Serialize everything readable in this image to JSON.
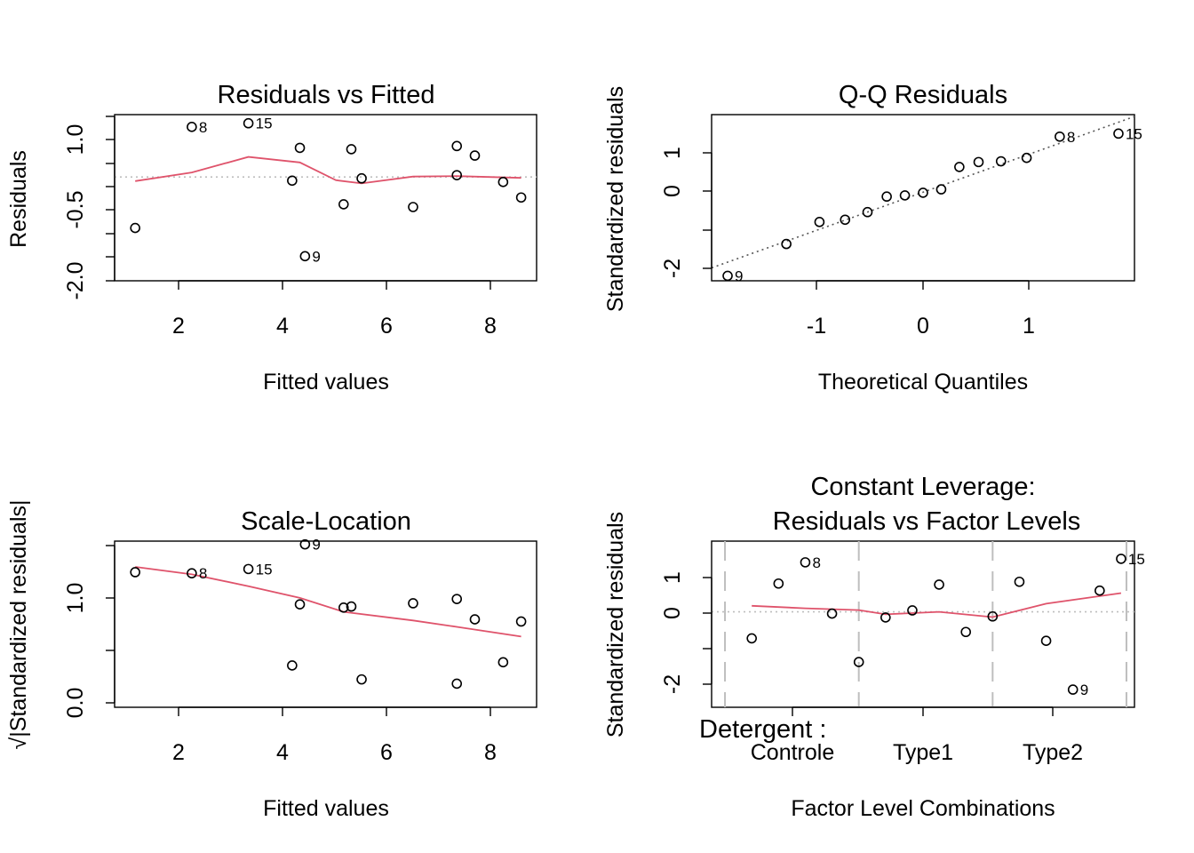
{
  "colors": {
    "background": "#ffffff",
    "points": "#000000",
    "smooth_line": "#DF536B",
    "reference_line": "#BEBEBE",
    "qq_line": "#555555"
  },
  "chart_data": [
    {
      "type": "scatter",
      "title": "Residuals vs Fitted",
      "xlabel": "Fitted values",
      "ylabel": "Residuals",
      "xlim": [
        0.7,
        8.9
      ],
      "ylim": [
        -2.28,
        1.37
      ],
      "x_ticks": [
        "2",
        "4",
        "6",
        "8"
      ],
      "y_ticks": [
        "-2.0",
        "-0.5",
        "1.0"
      ],
      "grid": false,
      "reference_line": {
        "y": 0,
        "style": "dotted"
      },
      "points": [
        {
          "x": 1.1,
          "y": -1.12,
          "label": ""
        },
        {
          "x": 2.2,
          "y": 1.1,
          "label": "8"
        },
        {
          "x": 3.3,
          "y": 1.18,
          "label": "15"
        },
        {
          "x": 4.15,
          "y": -0.08,
          "label": ""
        },
        {
          "x": 4.3,
          "y": 0.64,
          "label": ""
        },
        {
          "x": 4.4,
          "y": -1.74,
          "label": "9"
        },
        {
          "x": 5.15,
          "y": -0.6,
          "label": ""
        },
        {
          "x": 5.3,
          "y": 0.61,
          "label": ""
        },
        {
          "x": 5.5,
          "y": -0.03,
          "label": ""
        },
        {
          "x": 6.5,
          "y": -0.66,
          "label": ""
        },
        {
          "x": 7.35,
          "y": 0.68,
          "label": ""
        },
        {
          "x": 7.35,
          "y": 0.04,
          "label": ""
        },
        {
          "x": 7.7,
          "y": 0.47,
          "label": ""
        },
        {
          "x": 8.25,
          "y": -0.11,
          "label": ""
        },
        {
          "x": 8.6,
          "y": -0.45,
          "label": ""
        }
      ],
      "smooth": [
        [
          1.1,
          -0.09
        ],
        [
          2.2,
          0.1
        ],
        [
          3.3,
          0.44
        ],
        [
          4.3,
          0.32
        ],
        [
          5.0,
          -0.07
        ],
        [
          5.5,
          -0.14
        ],
        [
          6.5,
          0.01
        ],
        [
          7.35,
          0.02
        ],
        [
          8.6,
          -0.02
        ]
      ]
    },
    {
      "type": "scatter",
      "title": "Q-Q Residuals",
      "xlabel": "Theoretical Quantiles",
      "ylabel": "Standardized residuals",
      "xlim": [
        -1.98,
        1.98
      ],
      "ylim": [
        -2.38,
        2.0
      ],
      "x_ticks": [
        "-1",
        "0",
        "1"
      ],
      "y_ticks": [
        "-2",
        "0",
        "1"
      ],
      "grid": false,
      "reference_line": {
        "through": [
          [
            -1.98,
            -2.04
          ],
          [
            1.98,
            1.95
          ]
        ],
        "style": "dotted"
      },
      "points": [
        {
          "x": -1.83,
          "y": -2.25,
          "label": "9"
        },
        {
          "x": -1.28,
          "y": -1.41,
          "label": ""
        },
        {
          "x": -0.97,
          "y": -0.83,
          "label": ""
        },
        {
          "x": -0.73,
          "y": -0.77,
          "label": ""
        },
        {
          "x": -0.52,
          "y": -0.57,
          "label": ""
        },
        {
          "x": -0.34,
          "y": -0.16,
          "label": ""
        },
        {
          "x": -0.17,
          "y": -0.13,
          "label": ""
        },
        {
          "x": 0.0,
          "y": -0.06,
          "label": ""
        },
        {
          "x": 0.17,
          "y": 0.03,
          "label": ""
        },
        {
          "x": 0.34,
          "y": 0.62,
          "label": ""
        },
        {
          "x": 0.52,
          "y": 0.75,
          "label": ""
        },
        {
          "x": 0.73,
          "y": 0.77,
          "label": ""
        },
        {
          "x": 0.97,
          "y": 0.86,
          "label": ""
        },
        {
          "x": 1.28,
          "y": 1.42,
          "label": "8"
        },
        {
          "x": 1.83,
          "y": 1.5,
          "label": "15"
        }
      ]
    },
    {
      "type": "scatter",
      "title": "Scale-Location",
      "xlabel": "Fitted values",
      "ylabel": "√|Standardized residuals|",
      "xlim": [
        0.7,
        8.9
      ],
      "ylim": [
        -0.05,
        1.5
      ],
      "x_ticks": [
        "2",
        "4",
        "6",
        "8"
      ],
      "y_ticks": [
        "0.0",
        "1.0"
      ],
      "grid": false,
      "points": [
        {
          "x": 1.1,
          "y": 1.21,
          "label": ""
        },
        {
          "x": 2.2,
          "y": 1.2,
          "label": "8"
        },
        {
          "x": 3.3,
          "y": 1.24,
          "label": "15"
        },
        {
          "x": 4.15,
          "y": 0.34,
          "label": ""
        },
        {
          "x": 4.3,
          "y": 0.91,
          "label": ""
        },
        {
          "x": 4.4,
          "y": 1.47,
          "label": "9"
        },
        {
          "x": 5.15,
          "y": 0.88,
          "label": ""
        },
        {
          "x": 5.3,
          "y": 0.89,
          "label": ""
        },
        {
          "x": 5.5,
          "y": 0.21,
          "label": ""
        },
        {
          "x": 6.5,
          "y": 0.92,
          "label": ""
        },
        {
          "x": 7.35,
          "y": 0.96,
          "label": ""
        },
        {
          "x": 7.35,
          "y": 0.17,
          "label": ""
        },
        {
          "x": 7.7,
          "y": 0.77,
          "label": ""
        },
        {
          "x": 8.25,
          "y": 0.37,
          "label": ""
        },
        {
          "x": 8.6,
          "y": 0.75,
          "label": ""
        }
      ],
      "smooth": [
        [
          1.1,
          1.26
        ],
        [
          2.2,
          1.19
        ],
        [
          3.3,
          1.08
        ],
        [
          4.3,
          0.97
        ],
        [
          5.15,
          0.84
        ],
        [
          6.5,
          0.76
        ],
        [
          7.35,
          0.7
        ],
        [
          8.6,
          0.61
        ]
      ]
    },
    {
      "type": "scatter",
      "title_lines": [
        "Constant Leverage:",
        "Residuals vs Factor Levels"
      ],
      "xlabel": "Factor Level Combinations",
      "ylabel": "Standardized residuals",
      "factor_label": "Detergent :",
      "xlim": [
        0,
        15.8
      ],
      "ylim": [
        -2.7,
        2.0
      ],
      "x_categories": [
        "Controle",
        "Type1",
        "Type2"
      ],
      "category_centers": [
        3,
        8,
        13
      ],
      "group_separators": [
        0.5,
        5.5,
        10.5,
        15.5
      ],
      "y_ticks": [
        "-2",
        "0",
        "1"
      ],
      "grid": false,
      "reference_line": {
        "y": 0,
        "style": "dotted"
      },
      "points": [
        {
          "x": 1.5,
          "y": -0.75,
          "label": ""
        },
        {
          "x": 2.5,
          "y": 0.8,
          "label": ""
        },
        {
          "x": 3.5,
          "y": 1.4,
          "label": "8"
        },
        {
          "x": 4.5,
          "y": -0.05,
          "label": ""
        },
        {
          "x": 5.5,
          "y": -1.42,
          "label": ""
        },
        {
          "x": 6.5,
          "y": -0.16,
          "label": ""
        },
        {
          "x": 7.5,
          "y": 0.04,
          "label": ""
        },
        {
          "x": 8.5,
          "y": 0.77,
          "label": ""
        },
        {
          "x": 9.5,
          "y": -0.57,
          "label": ""
        },
        {
          "x": 10.5,
          "y": -0.13,
          "label": ""
        },
        {
          "x": 11.5,
          "y": 0.85,
          "label": ""
        },
        {
          "x": 12.5,
          "y": -0.82,
          "label": ""
        },
        {
          "x": 13.5,
          "y": -2.2,
          "label": "9"
        },
        {
          "x": 14.5,
          "y": 0.6,
          "label": ""
        },
        {
          "x": 15.3,
          "y": 1.5,
          "label": "15"
        }
      ],
      "smooth": [
        [
          1.5,
          0.17
        ],
        [
          3.5,
          0.1
        ],
        [
          5.5,
          0.05
        ],
        [
          6.5,
          -0.07
        ],
        [
          8.5,
          0.0
        ],
        [
          10.5,
          -0.15
        ],
        [
          12.5,
          0.23
        ],
        [
          15.3,
          0.53
        ]
      ]
    }
  ]
}
